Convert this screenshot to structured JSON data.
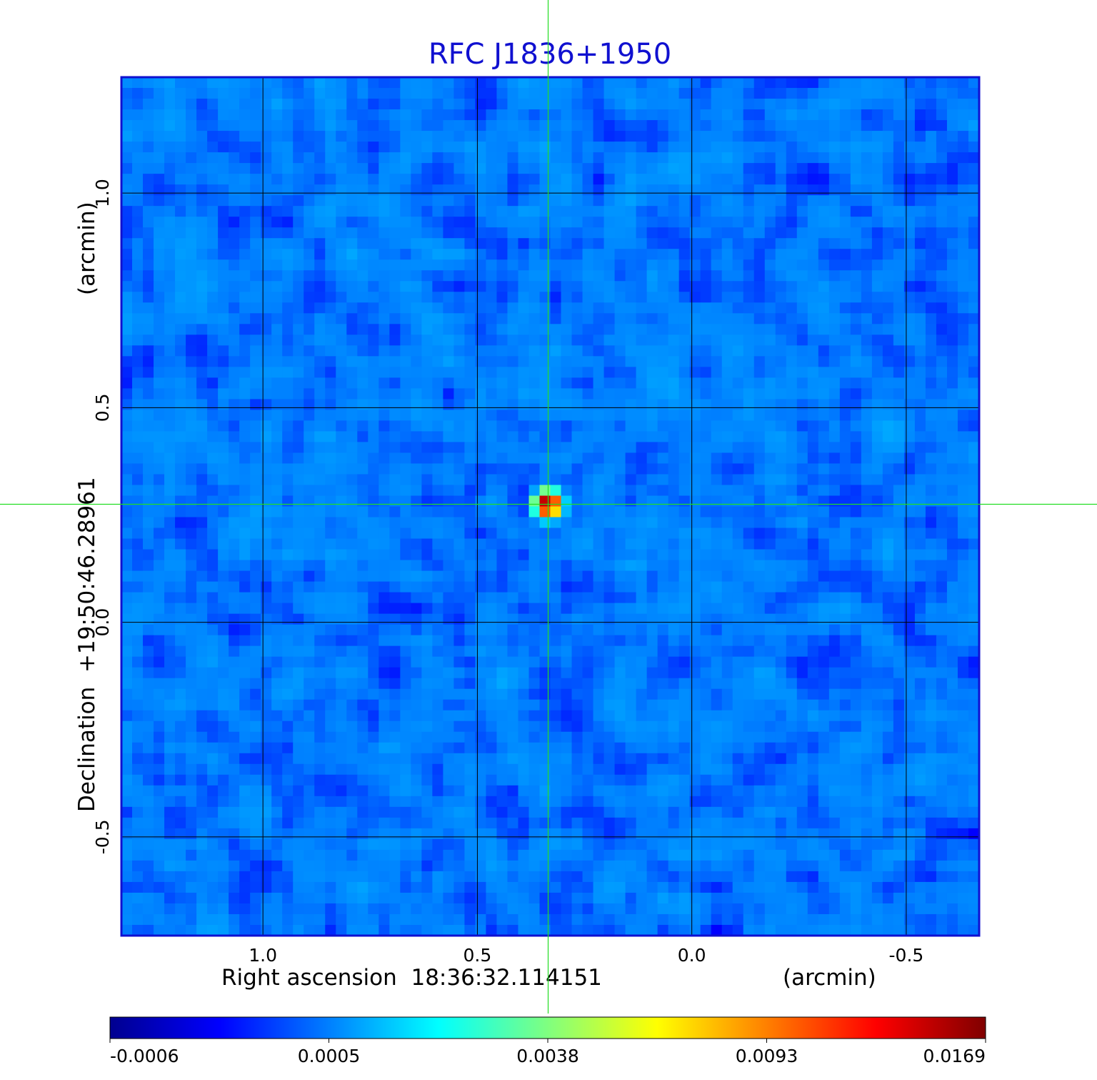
{
  "chart_data": {
    "type": "heatmap",
    "title": "RFC J1836+1950",
    "xlabel": "Right ascension  18:36:32.114151",
    "xunit": "(arcmin)",
    "ylabel": "Declination  +19:50:46.28961",
    "yunit": "(arcmin)",
    "xlim": [
      1.33,
      -0.67
    ],
    "ylim": [
      -0.73,
      1.27
    ],
    "x_direction": "decreasing",
    "x_ticks": [
      1.0,
      0.5,
      0.0,
      -0.5
    ],
    "x_tick_labels": [
      "1.0",
      "0.5",
      "0.0",
      "-0.5"
    ],
    "y_ticks": [
      1.0,
      0.5,
      0.0,
      -0.5
    ],
    "y_tick_labels": [
      "1.0",
      "0.5",
      "0.0",
      "-0.5"
    ],
    "grid": true,
    "colormap": "jet",
    "colorbar_ticks": [
      -0.0006,
      0.0005,
      0.0038,
      0.0093,
      0.0169
    ],
    "colorbar_tick_labels": [
      "-0.0006",
      "0.0005",
      "0.0038",
      "0.0093",
      "0.0169"
    ],
    "colorbar_placement": "bottom",
    "source": {
      "x": 0.335,
      "y": 0.275,
      "peak": 0.0169
    },
    "crosshair": {
      "x": 0.335,
      "y": 0.275,
      "color": "#22dd22"
    },
    "background_level": 0.0005,
    "frame_color": "#1010d0"
  }
}
